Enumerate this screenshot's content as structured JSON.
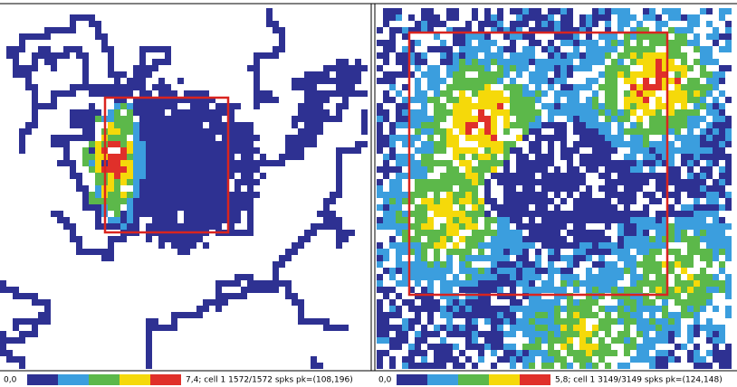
{
  "panels": [
    {
      "min_label": "0,0",
      "caption": "7,4; cell 1 1572/1572 spks pk=(108,196)"
    },
    {
      "min_label": "0,0",
      "caption": "5,8; cell 1 3149/3149 spks pk=(124,148)"
    }
  ],
  "colorbar_colors": [
    "#2e3192",
    "#3b9ede",
    "#5cb84a",
    "#f5d90a",
    "#e0302a"
  ],
  "box_color": "#d9241f"
}
